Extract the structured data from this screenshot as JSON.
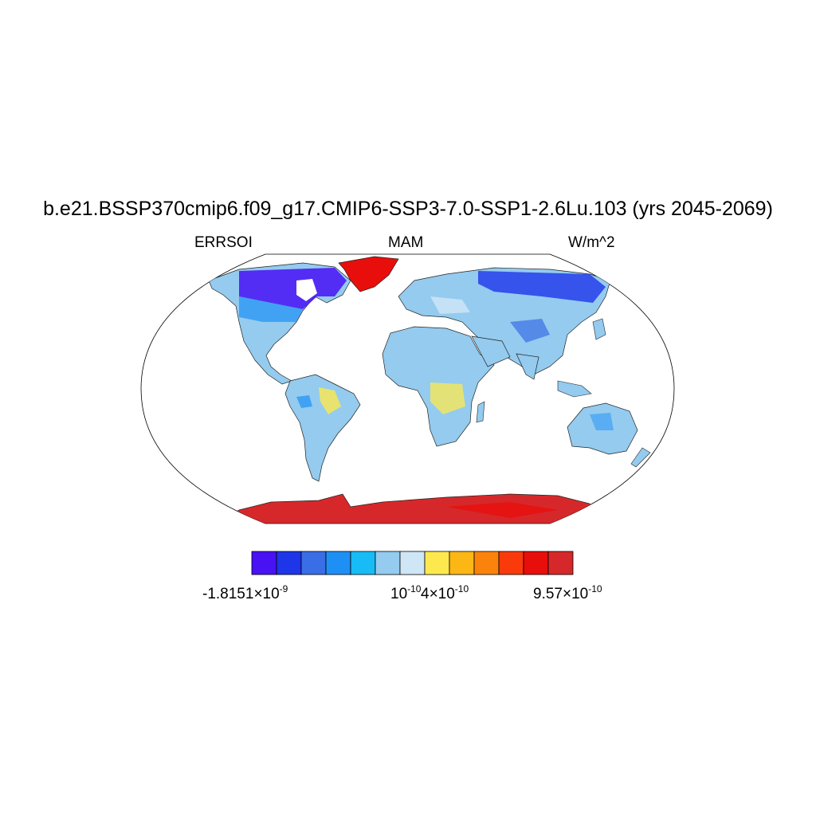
{
  "title": "b.e21.BSSP370cmip6.f09_g17.CMIP6-SSP3-7.0-SSP1-2.6Lu.103 (yrs 2045-2069)",
  "subtitle_left": "ERRSOI",
  "subtitle_center": "MAM",
  "subtitle_right": "W/m^2",
  "colorbar": {
    "colors": [
      "#4812f4",
      "#1e35ea",
      "#3a6ee6",
      "#1e90f5",
      "#17bcf7",
      "#94cbef",
      "#cfe6f7",
      "#fde94d",
      "#fcb714",
      "#fb830c",
      "#fb3a0b",
      "#e80e0c",
      "#d6282a"
    ],
    "labels": [
      {
        "base": "-1.8151×10",
        "exp": "-9",
        "boundary": 0
      },
      {
        "base": "10",
        "exp": "-10",
        "boundary": 6
      },
      {
        "base": "4×10",
        "exp": "-10",
        "boundary": 8
      },
      {
        "base": "9.57×10",
        "exp": "-10",
        "boundary": 13
      }
    ]
  },
  "map": {
    "projection": "robinson",
    "ocean_color": "#ffffff",
    "coastline_color": "#000000"
  }
}
